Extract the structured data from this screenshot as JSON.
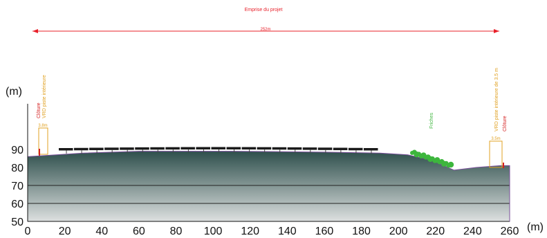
{
  "title": "Emprise du projet",
  "extent_label": "252m",
  "axis": {
    "y_unit": "(m)",
    "x_unit": "(m)",
    "x_ticks": [
      0,
      20,
      40,
      60,
      80,
      100,
      120,
      140,
      160,
      180,
      200,
      220,
      240,
      260
    ],
    "y_ticks": [
      50,
      60,
      70,
      80,
      90
    ],
    "x_range": [
      0,
      260
    ],
    "y_range": [
      50,
      90
    ]
  },
  "left_annotations": {
    "fence": "Clôture",
    "road": "VRD piste intérieure",
    "width": "3.8m"
  },
  "right_annotations": {
    "road": "VRD piste intérieure de 3.5 m",
    "fence": "Clôture",
    "width": "3.5m"
  },
  "vegetation_label": "Friches",
  "colors": {
    "title": "#e8202a",
    "annotation_road": "#e0a020",
    "annotation_fence": "#d42020",
    "vegetation": "#3db63d",
    "panels": "#1a1a1a",
    "terrain_top": "#2e4f4c",
    "terrain_bottom": "#d8dcdc",
    "profile_line": "#7a4f9a"
  },
  "terrain_profile": [
    [
      0,
      86
    ],
    [
      30,
      88
    ],
    [
      60,
      89
    ],
    [
      110,
      89
    ],
    [
      160,
      88.5
    ],
    [
      190,
      88
    ],
    [
      205,
      87
    ],
    [
      218,
      84
    ],
    [
      230,
      78.5
    ],
    [
      242,
      80
    ],
    [
      255,
      81
    ],
    [
      260,
      81
    ]
  ]
}
